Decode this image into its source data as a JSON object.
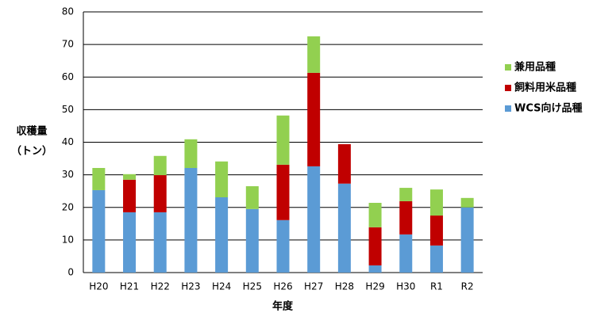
{
  "chart_data": {
    "type": "stacked_bar",
    "y_label": [
      "収穫量",
      "（トン）"
    ],
    "x_label": "年度",
    "categories": [
      "H20",
      "H21",
      "H22",
      "H23",
      "H24",
      "H25",
      "H26",
      "H27",
      "H28",
      "H29",
      "H30",
      "R1",
      "R2"
    ],
    "series": [
      {
        "name": "WCS向け品種",
        "color": "#5b9bd5",
        "values": [
          25.3,
          18.5,
          18.5,
          32.1,
          23.1,
          19.5,
          16.1,
          32.6,
          27.3,
          2.2,
          11.7,
          8.3,
          20
        ]
      },
      {
        "name": "飼料用米品種",
        "color": "#c00000",
        "values": [
          0,
          10,
          11.4,
          0,
          0,
          0,
          17,
          28.7,
          12.1,
          11.7,
          10.2,
          9.2,
          0
        ]
      },
      {
        "name": "兼用品種",
        "color": "#92d050",
        "values": [
          6.8,
          1.7,
          5.9,
          8.8,
          11,
          7,
          15.1,
          11.2,
          0,
          7.5,
          4.1,
          8,
          2.9
        ]
      }
    ],
    "ylim": [
      0,
      80
    ],
    "yticks": [
      0,
      10,
      20,
      30,
      40,
      50,
      60,
      70,
      80
    ],
    "grid": true
  }
}
